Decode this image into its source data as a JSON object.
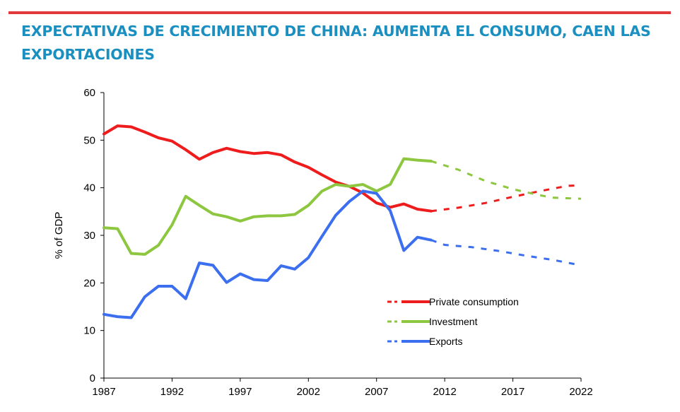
{
  "header": {
    "title": "EXPECTATIVAS DE CRECIMIENTO DE CHINA: AUMENTA EL CONSUMO, CAEN LAS EXPORTACIONES"
  },
  "colors": {
    "rule": "#e0383b",
    "title": "#1a8fc0"
  },
  "chart_data": {
    "type": "line",
    "ylabel": "% of GDP",
    "xlim": [
      1987,
      2022
    ],
    "ylim": [
      0,
      60
    ],
    "x_ticks": [
      1987,
      1992,
      1997,
      2002,
      2007,
      2012,
      2017,
      2022
    ],
    "y_ticks": [
      0,
      10,
      20,
      30,
      40,
      50,
      60
    ],
    "grid": false,
    "legend_position": "lower-right",
    "series": [
      {
        "name": "Private consumption",
        "color": "#ee1c1c",
        "actual": [
          [
            1987,
            51.3
          ],
          [
            1988,
            53.0
          ],
          [
            1989,
            52.8
          ],
          [
            1990,
            51.7
          ],
          [
            1991,
            50.5
          ],
          [
            1992,
            49.8
          ],
          [
            1993,
            48.0
          ],
          [
            1994,
            46.0
          ],
          [
            1995,
            47.4
          ],
          [
            1996,
            48.3
          ],
          [
            1997,
            47.6
          ],
          [
            1998,
            47.2
          ],
          [
            1999,
            47.4
          ],
          [
            2000,
            46.9
          ],
          [
            2001,
            45.4
          ],
          [
            2002,
            44.3
          ],
          [
            2003,
            42.7
          ],
          [
            2004,
            41.2
          ],
          [
            2005,
            40.3
          ],
          [
            2006,
            38.9
          ],
          [
            2007,
            36.8
          ],
          [
            2008,
            35.9
          ],
          [
            2009,
            36.6
          ],
          [
            2010,
            35.5
          ],
          [
            2011,
            35.1
          ]
        ],
        "forecast": [
          [
            2011,
            35.1
          ],
          [
            2013,
            35.8
          ],
          [
            2015,
            36.8
          ],
          [
            2017,
            38.1
          ],
          [
            2019,
            39.3
          ],
          [
            2021,
            40.4
          ],
          [
            2022,
            40.5
          ]
        ]
      },
      {
        "name": "Investment",
        "color": "#8dc63f",
        "actual": [
          [
            1987,
            31.6
          ],
          [
            1988,
            31.4
          ],
          [
            1989,
            26.2
          ],
          [
            1990,
            26.0
          ],
          [
            1991,
            27.9
          ],
          [
            1992,
            32.2
          ],
          [
            1993,
            38.2
          ],
          [
            1994,
            36.3
          ],
          [
            1995,
            34.5
          ],
          [
            1996,
            33.9
          ],
          [
            1997,
            33.0
          ],
          [
            1998,
            33.9
          ],
          [
            1999,
            34.1
          ],
          [
            2000,
            34.1
          ],
          [
            2001,
            34.4
          ],
          [
            2002,
            36.3
          ],
          [
            2003,
            39.3
          ],
          [
            2004,
            40.7
          ],
          [
            2005,
            40.3
          ],
          [
            2006,
            40.7
          ],
          [
            2007,
            39.3
          ],
          [
            2008,
            40.7
          ],
          [
            2009,
            46.1
          ],
          [
            2010,
            45.8
          ],
          [
            2011,
            45.6
          ]
        ],
        "forecast": [
          [
            2011,
            45.6
          ],
          [
            2013,
            43.8
          ],
          [
            2015,
            41.4
          ],
          [
            2017,
            39.7
          ],
          [
            2019,
            38.4
          ],
          [
            2020,
            37.9
          ],
          [
            2022,
            37.7
          ]
        ]
      },
      {
        "name": "Exports",
        "color": "#3b6fef",
        "actual": [
          [
            1987,
            13.4
          ],
          [
            1988,
            12.9
          ],
          [
            1989,
            12.7
          ],
          [
            1990,
            17.1
          ],
          [
            1991,
            19.3
          ],
          [
            1992,
            19.3
          ],
          [
            1993,
            16.7
          ],
          [
            1994,
            24.2
          ],
          [
            1995,
            23.7
          ],
          [
            1996,
            20.1
          ],
          [
            1997,
            21.9
          ],
          [
            1998,
            20.7
          ],
          [
            1999,
            20.5
          ],
          [
            2000,
            23.6
          ],
          [
            2001,
            22.9
          ],
          [
            2002,
            25.3
          ],
          [
            2003,
            29.8
          ],
          [
            2004,
            34.2
          ],
          [
            2005,
            37.1
          ],
          [
            2006,
            39.3
          ],
          [
            2007,
            38.8
          ],
          [
            2008,
            35.2
          ],
          [
            2009,
            26.8
          ],
          [
            2010,
            29.6
          ],
          [
            2011,
            29.0
          ]
        ],
        "forecast": [
          [
            2011,
            29.0
          ],
          [
            2012,
            28.0
          ],
          [
            2014,
            27.5
          ],
          [
            2016,
            26.7
          ],
          [
            2018,
            25.7
          ],
          [
            2020,
            24.8
          ],
          [
            2022,
            23.7
          ]
        ]
      }
    ]
  }
}
